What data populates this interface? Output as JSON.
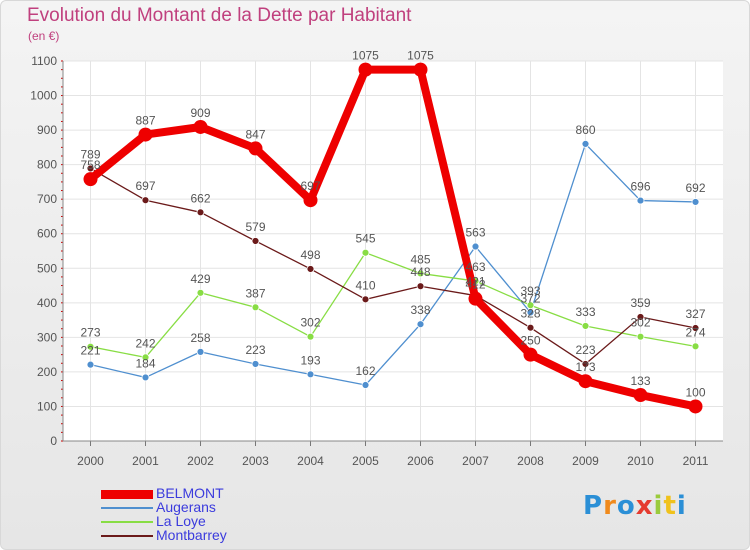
{
  "title": "Evolution du Montant de la Dette par Habitant",
  "unit": "(en €)",
  "logo": "Proxiti",
  "chart_data": {
    "type": "line",
    "x": [
      "2000",
      "2001",
      "2002",
      "2003",
      "2004",
      "2005",
      "2006",
      "2007",
      "2008",
      "2009",
      "2010",
      "2011"
    ],
    "ylim": [
      0,
      1100
    ],
    "yticks": [
      0,
      100,
      200,
      300,
      400,
      500,
      600,
      700,
      800,
      900,
      1000,
      1100
    ],
    "grid": true,
    "legend_position": "bottom-left",
    "series": [
      {
        "name": "BELMONT",
        "color": "#ee0000",
        "values": [
          758,
          887,
          909,
          847,
          697,
          1075,
          1075,
          412,
          250,
          173,
          133,
          100
        ]
      },
      {
        "name": "Augerans",
        "color": "#4f8fcf",
        "values": [
          221,
          184,
          258,
          223,
          193,
          162,
          338,
          563,
          372,
          860,
          696,
          692
        ]
      },
      {
        "name": "La Loye",
        "color": "#88dd44",
        "values": [
          273,
          242,
          429,
          387,
          302,
          545,
          485,
          463,
          393,
          333,
          302,
          274
        ]
      },
      {
        "name": "Montbarrey",
        "color": "#6b1a1a",
        "values": [
          789,
          697,
          662,
          579,
          498,
          410,
          448,
          421,
          328,
          223,
          359,
          327
        ]
      }
    ],
    "labels": {
      "BELMONT": [
        "758",
        "887",
        "909",
        "847",
        "697",
        "1075",
        "1075",
        "412",
        "250",
        "173",
        "133",
        "100"
      ],
      "Augerans": [
        "221",
        "184",
        "258",
        "223",
        "193",
        "162",
        "338",
        "563",
        "372",
        "860",
        "696",
        "692"
      ],
      "La Loye": [
        "273",
        "242",
        "429",
        "387",
        "302",
        "545",
        "485",
        "463",
        "393",
        "333",
        "302",
        "274"
      ],
      "Montbarrey": [
        "789",
        "697",
        "662",
        "579",
        "498",
        "410",
        "448",
        "421",
        "328",
        "223",
        "359",
        "327"
      ]
    }
  }
}
